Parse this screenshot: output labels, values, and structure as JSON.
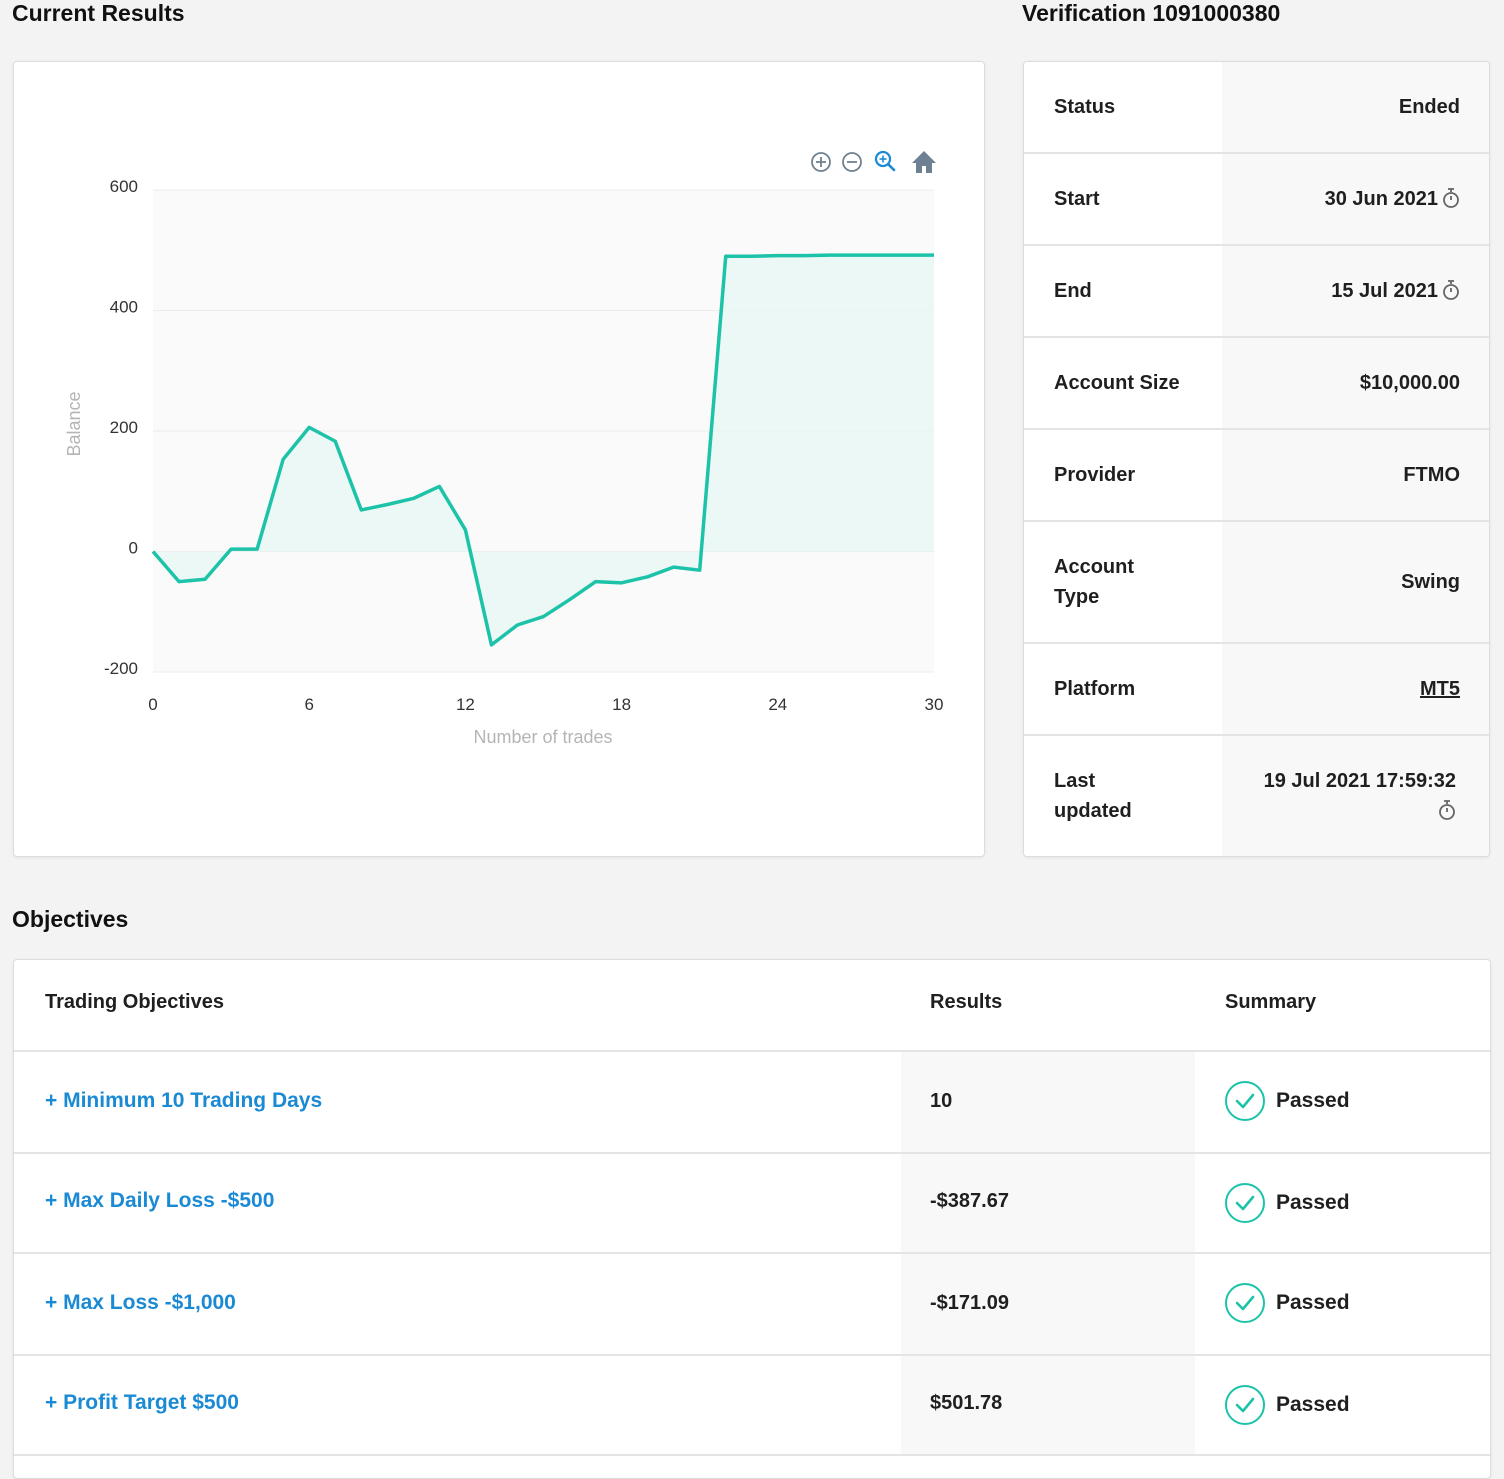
{
  "headings": {
    "current_results": "Current Results",
    "verification": "Verification 1091000380",
    "objectives": "Objectives"
  },
  "chart_toolbar": [
    "zoom-in-icon",
    "zoom-out-icon",
    "zoom-select-icon",
    "home-icon"
  ],
  "chart_data": {
    "type": "area",
    "xlabel": "Number of trades",
    "ylabel": "Balance",
    "xlim": [
      0,
      30
    ],
    "ylim": [
      -200,
      600
    ],
    "xticks": [
      "0",
      "6",
      "12",
      "18",
      "24",
      "30"
    ],
    "yticks": [
      "600",
      "400",
      "200",
      "0",
      "-200"
    ],
    "x": [
      0,
      1,
      2,
      3,
      4,
      5,
      6,
      7,
      8,
      9,
      10,
      11,
      12,
      13,
      14,
      15,
      16,
      17,
      18,
      19,
      20,
      21,
      22,
      23,
      24,
      25,
      26,
      27,
      28,
      29,
      30
    ],
    "values": [
      0,
      -50,
      -46,
      4,
      4,
      153,
      206,
      183,
      69,
      78,
      88,
      108,
      36,
      -155,
      -122,
      -108,
      -80,
      -50,
      -52,
      -42,
      -26,
      -31,
      490,
      490,
      491,
      491,
      492,
      492,
      492,
      492,
      492
    ],
    "line_color": "#1cc3a8",
    "fill_color": "#e8f7f3",
    "grid": true
  },
  "info": {
    "rows": [
      {
        "label": "Status",
        "value": "Ended",
        "timer": false,
        "link": false
      },
      {
        "label": "Start",
        "value": "30 Jun 2021",
        "timer": true,
        "link": false
      },
      {
        "label": "End",
        "value": "15 Jul 2021",
        "timer": true,
        "link": false
      },
      {
        "label": "Account Size",
        "value": "$10,000.00",
        "timer": false,
        "link": false
      },
      {
        "label": "Provider",
        "value": "FTMO",
        "timer": false,
        "link": false
      },
      {
        "label": "Account Type",
        "value": "Swing",
        "timer": false,
        "link": false
      },
      {
        "label": "Platform",
        "value": "MT5",
        "timer": false,
        "link": true
      },
      {
        "label": "Last updated",
        "value": "19 Jul 2021 17:59:32",
        "timer": true,
        "link": false
      }
    ]
  },
  "objectives": {
    "headers": {
      "objective": "Trading Objectives",
      "results": "Results",
      "summary": "Summary"
    },
    "rows": [
      {
        "objective": "+ Minimum 10 Trading Days",
        "result": "10",
        "summary": "Passed"
      },
      {
        "objective": "+ Max Daily Loss -$500",
        "result": "-$387.67",
        "summary": "Passed"
      },
      {
        "objective": "+ Max Loss -$1,000",
        "result": "-$171.09",
        "summary": "Passed"
      },
      {
        "objective": "+ Profit Target $500",
        "result": "$501.78",
        "summary": "Passed"
      }
    ]
  },
  "colors": {
    "accent": "#1cc3a8",
    "link": "#1a8ad4"
  }
}
